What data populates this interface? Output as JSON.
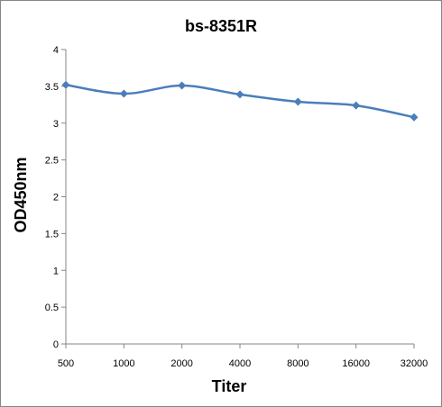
{
  "chart_data": {
    "type": "line",
    "title": "bs-8351R",
    "xlabel": "Titer",
    "ylabel": "OD450nm",
    "categories": [
      "500",
      "1000",
      "2000",
      "4000",
      "8000",
      "16000",
      "32000"
    ],
    "series": [
      {
        "values": [
          3.52,
          3.4,
          3.51,
          3.39,
          3.29,
          3.24,
          3.08
        ],
        "color": "#4A7EBB",
        "marker": "diamond",
        "smooth": true
      }
    ],
    "ylim": [
      0,
      4
    ],
    "yticks": [
      0,
      0.5,
      1,
      1.5,
      2,
      2.5,
      3,
      3.5,
      4
    ],
    "ytick_labels": [
      "0",
      "0.5",
      "1",
      "1.5",
      "2",
      "2.5",
      "3",
      "3.5",
      "4"
    ],
    "grid": false,
    "legend": "none"
  }
}
